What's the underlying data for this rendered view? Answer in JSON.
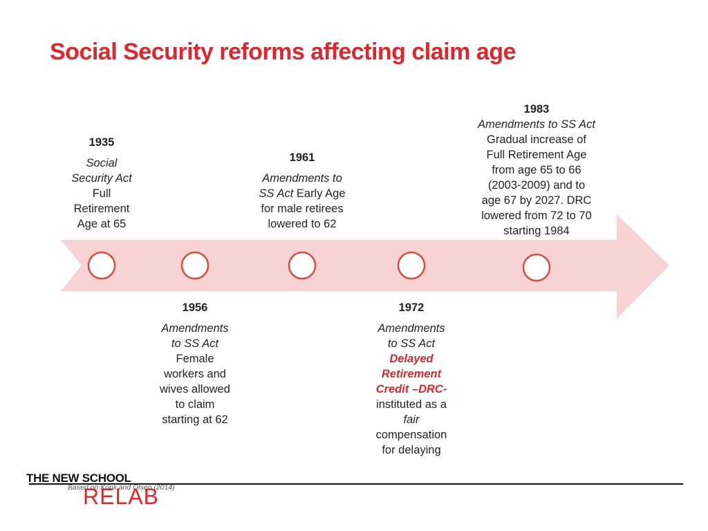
{
  "title": "Social Security reforms affecting claim age",
  "colors": {
    "title": "#e3242b",
    "arrow_fill": "#f8d3d3",
    "circle_stroke": "#e04a3c",
    "highlight": "#e3242b",
    "logo_red": "#e3242b"
  },
  "events": [
    {
      "year": "1935",
      "line1": "Social",
      "line2": "Security Act",
      "line3": "Full",
      "line4": "Retirement",
      "line5": "Age at 65"
    },
    {
      "year": "1956",
      "line1": "Amendments",
      "line2": "to SS Act",
      "line3": "Female",
      "line4": "workers and",
      "line5": "wives allowed",
      "line6": "to claim",
      "line7": "starting at 62"
    },
    {
      "year": "1961",
      "line1": "Amendments to",
      "line2_italic": "SS Act",
      "line2_rest": " Early Age",
      "line3": "for male retirees",
      "line4": "lowered to 62"
    },
    {
      "year": "1972",
      "line1": "Amendments",
      "line2": "to SS Act",
      "line3": "Delayed",
      "line4": "Retirement",
      "line5": "Credit –DRC-",
      "line6": "instituted as a",
      "line7": "fair",
      "line8": "compensation",
      "line9": "for delaying"
    },
    {
      "year": "1983",
      "line1": "Amendments to SS Act",
      "line2": "Gradual increase of",
      "line3": "Full Retirement Age",
      "line4": "from age 65 to 66",
      "line5": "(2003-2009) and to",
      "line6": "age 67 by 2027. DRC",
      "line7": "lowered from 72 to 70",
      "line8": "starting 1984"
    }
  ],
  "logo": {
    "top": "THE NEW SCHOOL",
    "bottom": "RELAB"
  },
  "source": "Based on Kopli and Olsen (2014)"
}
